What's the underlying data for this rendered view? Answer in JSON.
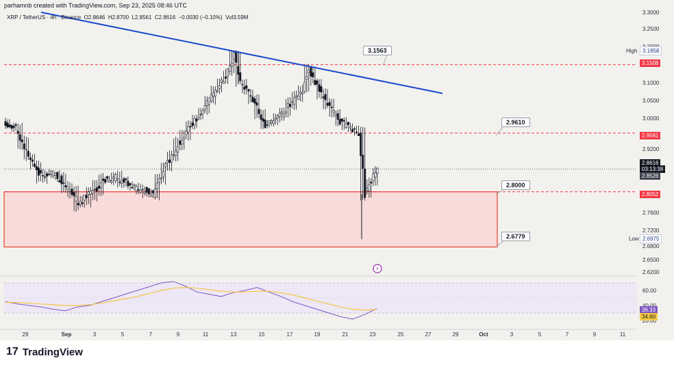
{
  "header": {
    "credit": "parhamnb created with TradingView.com, Sep 23, 2025 08:46 UTC"
  },
  "symbol": {
    "title": "XRP / TetherUS · 4h · Binance",
    "open_label": "O",
    "open": "2.8646",
    "high_label": "H",
    "high": "2.8700",
    "low_label": "L",
    "low": "2.8561",
    "close_label": "C",
    "close": "2.8616",
    "change": "−0.0030 (−0.10%)",
    "vol_label": "Vol",
    "vol": "3.59M"
  },
  "annotations": {
    "level_1": "3.1563",
    "level_2": "2.9610",
    "level_3": "2.8000",
    "level_4": "2.6779"
  },
  "price_axis_tags": {
    "high_word": "High",
    "high_value": "3.1858",
    "low_word": "Low",
    "low_value": "2.6975",
    "resistance_1": "3.1508",
    "resistance_2": "2.9581",
    "current_price": "2.8616",
    "countdown": "03:13:38",
    "prev_close": "2.8526",
    "support_top": "2.8052"
  },
  "rsi_tags": {
    "rsi": "36.33",
    "rsi_ma": "34.60"
  },
  "brand": {
    "name": "TradingView",
    "logo_glyph": "17"
  },
  "colors": {
    "up": "#131722",
    "down": "#131722",
    "trendline": "#1848cc",
    "dashed_red": "#f23645",
    "zone_fill": "#f9dcd9",
    "zone_border": "#e8412f",
    "rsi_line": "#7e57c2",
    "rsi_ma": "#f5c842",
    "rsi_band": "#ede7f6",
    "axis_high": "#1e3a8a"
  },
  "chart_data": [
    {
      "type": "candlestick",
      "title": "",
      "timeframe": "4h",
      "x_ticks": [
        "29",
        "Sep",
        "3",
        "5",
        "7",
        "9",
        "11",
        "13",
        "15",
        "17",
        "19",
        "21",
        "23",
        "25",
        "27",
        "29",
        "Oct",
        "3",
        "5",
        "7",
        "9",
        "11"
      ],
      "y_ticks": [
        "3.3000",
        "3.2500",
        "3.2000",
        "3.1500",
        "3.1000",
        "3.0500",
        "3.0000",
        "2.9500",
        "2.9200",
        "2.8800",
        "2.8400",
        "2.8000",
        "2.7600",
        "2.7200",
        "2.6800",
        "2.6500",
        "2.6200"
      ],
      "ylim": [
        2.62,
        3.3
      ],
      "close_path": [
        {
          "x": 0,
          "y": 2.99
        },
        {
          "x": 2,
          "y": 2.97
        },
        {
          "x": 4,
          "y": 2.9
        },
        {
          "x": 6,
          "y": 2.84
        },
        {
          "x": 8,
          "y": 2.85
        },
        {
          "x": 10,
          "y": 2.82
        },
        {
          "x": 12,
          "y": 2.78
        },
        {
          "x": 14,
          "y": 2.8
        },
        {
          "x": 16,
          "y": 2.83
        },
        {
          "x": 18,
          "y": 2.84
        },
        {
          "x": 20,
          "y": 2.82
        },
        {
          "x": 22,
          "y": 2.81
        },
        {
          "x": 24,
          "y": 2.8
        },
        {
          "x": 26,
          "y": 2.87
        },
        {
          "x": 28,
          "y": 2.93
        },
        {
          "x": 30,
          "y": 2.98
        },
        {
          "x": 32,
          "y": 3.02
        },
        {
          "x": 34,
          "y": 3.08
        },
        {
          "x": 36,
          "y": 3.13
        },
        {
          "x": 37,
          "y": 3.18
        },
        {
          "x": 38,
          "y": 3.1
        },
        {
          "x": 40,
          "y": 3.05
        },
        {
          "x": 42,
          "y": 2.98
        },
        {
          "x": 44,
          "y": 3.0
        },
        {
          "x": 46,
          "y": 3.04
        },
        {
          "x": 48,
          "y": 3.08
        },
        {
          "x": 49,
          "y": 3.14
        },
        {
          "x": 50,
          "y": 3.1
        },
        {
          "x": 52,
          "y": 3.04
        },
        {
          "x": 54,
          "y": 2.99
        },
        {
          "x": 56,
          "y": 2.97
        },
        {
          "x": 57,
          "y": 2.96
        },
        {
          "x": 58,
          "y": 2.8
        },
        {
          "x": 59,
          "y": 2.83
        },
        {
          "x": 60,
          "y": 2.86
        }
      ],
      "close_path_note": "",
      "extremes": {
        "high": 3.1858,
        "low": 2.6975,
        "last": 2.8616
      },
      "horizontal_levels": [
        3.1508,
        2.9581,
        2.8052
      ],
      "support_zone": [
        2.6779,
        2.8052
      ],
      "trendline": {
        "from": 3.3,
        "to": 3.07
      }
    },
    {
      "type": "line",
      "title": "RSI",
      "y_ticks": [
        "60.00",
        "40.00",
        "20.00"
      ],
      "ylim": [
        15,
        80
      ],
      "bands": [
        70,
        30
      ],
      "series": [
        {
          "name": "",
          "values": [
            45,
            42,
            40,
            38,
            35,
            33,
            38,
            40,
            45,
            50,
            55,
            60,
            65,
            70,
            72,
            66,
            58,
            55,
            52,
            57,
            60,
            64,
            58,
            52,
            45,
            40,
            35,
            30,
            25,
            22,
            28,
            36
          ]
        },
        {
          "name": "",
          "values": [
            44,
            44,
            43,
            42,
            41,
            40,
            40,
            41,
            43,
            46,
            49,
            52,
            56,
            60,
            63,
            64,
            63,
            61,
            59,
            58,
            58,
            59,
            59,
            57,
            54,
            50,
            46,
            42,
            38,
            35,
            34,
            34.6
          ]
        }
      ],
      "last": {
        "rsi": 36.33,
        "ma": 34.6
      }
    }
  ]
}
